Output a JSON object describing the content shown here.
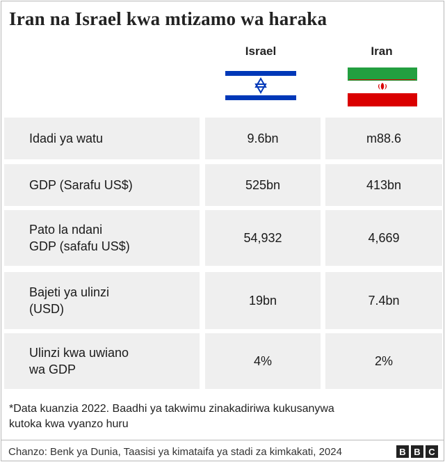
{
  "title": "Iran na Israel kwa mtizamo wa haraka",
  "columns": [
    {
      "name": "Israel",
      "flag_icon": "israel-flag-icon"
    },
    {
      "name": "Iran",
      "flag_icon": "iran-flag-icon"
    }
  ],
  "rows": [
    {
      "label_line1": "Idadi ya watu",
      "label_line2": "",
      "israel": "9.6bn",
      "iran": "m88.6"
    },
    {
      "label_line1": "GDP (Sarafu US$)",
      "label_line2": "",
      "israel": "525bn",
      "iran": "413bn"
    },
    {
      "label_line1": "Pato la ndani",
      "label_line2": "GDP (safafu US$)",
      "israel": "54,932",
      "iran": "4,669"
    },
    {
      "label_line1": "Bajeti ya ulinzi",
      "label_line2": "(USD)",
      "israel": "19bn",
      "iran": "7.4bn"
    },
    {
      "label_line1": "Ulinzi kwa uwiano",
      "label_line2": "wa GDP",
      "israel": "4%",
      "iran": "2%"
    }
  ],
  "note_line1": "*Data kuanzia 2022. Baadhi ya takwimu zinakadiriwa kukusanywa",
  "note_line2": "kutoka kwa vyanzo huru",
  "source": "Chanzo: Benk ya Dunia, Taasisi ya kimataifa ya stadi za kimkakati, 2024",
  "logo": [
    "B",
    "B",
    "C"
  ],
  "colors": {
    "israel_blue": "#0038b8",
    "iran_green": "#239f40",
    "iran_red": "#da0000",
    "cell_bg": "#efefef"
  }
}
